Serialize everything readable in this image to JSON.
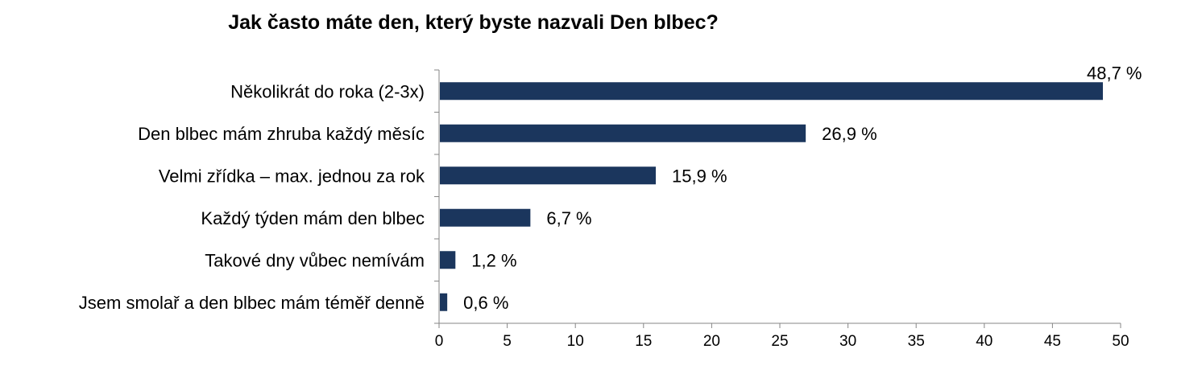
{
  "chart_data": {
    "type": "bar",
    "orientation": "horizontal",
    "title": "Jak často máte den, který byste nazvali Den blbec?",
    "xlabel": "",
    "ylabel": "",
    "xlim": [
      0,
      50
    ],
    "x_ticks": [
      "0",
      "5",
      "10",
      "15",
      "20",
      "25",
      "30",
      "35",
      "40",
      "45",
      "50"
    ],
    "categories": [
      "Několikrát do roka (2-3x)",
      "Den blbec mám zhruba každý měsíc",
      "Velmi zřídka – max. jednou za rok",
      "Každý týden mám den blbec",
      "Takové dny vůbec nemívám",
      "Jsem smolař a den blbec mám téměř denně"
    ],
    "values": [
      48.7,
      26.9,
      15.9,
      6.7,
      1.2,
      0.6
    ],
    "data_labels": [
      "48,7 %",
      "26,9 %",
      "15,9 %",
      "6,7 %",
      "1,2 %",
      "0,6 %"
    ],
    "bar_color": "#1b365d",
    "grid": false,
    "legend": "none"
  }
}
